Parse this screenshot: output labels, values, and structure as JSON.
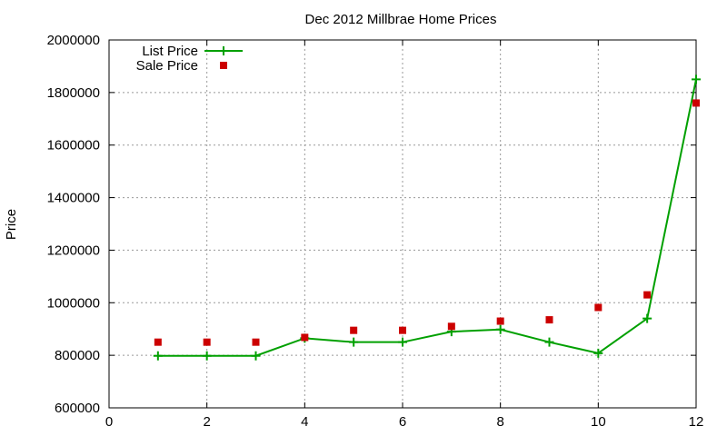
{
  "chart_data": {
    "type": "line",
    "title": "Dec 2012 Millbrae Home Prices",
    "xlabel": "",
    "ylabel": "Price",
    "xlim": [
      0,
      12
    ],
    "ylim": [
      600000,
      2000000
    ],
    "x_ticks": [
      0,
      2,
      4,
      6,
      8,
      10,
      12
    ],
    "y_ticks": [
      600000,
      800000,
      1000000,
      1200000,
      1400000,
      1600000,
      1800000,
      2000000
    ],
    "grid": true,
    "legend_position": "top-left",
    "x": [
      1,
      2,
      3,
      4,
      5,
      6,
      7,
      8,
      9,
      10,
      11,
      12
    ],
    "series": [
      {
        "name": "List Price",
        "style": "line-with-plus-markers",
        "color": "#00a000",
        "values": [
          798000,
          798000,
          798000,
          865000,
          850000,
          850000,
          890000,
          898000,
          850000,
          808000,
          940000,
          1850000
        ]
      },
      {
        "name": "Sale Price",
        "style": "square-markers",
        "color": "#cc0000",
        "values": [
          850000,
          850000,
          850000,
          868000,
          895000,
          895000,
          910000,
          930000,
          935000,
          982000,
          1030000,
          1760000
        ]
      }
    ]
  }
}
